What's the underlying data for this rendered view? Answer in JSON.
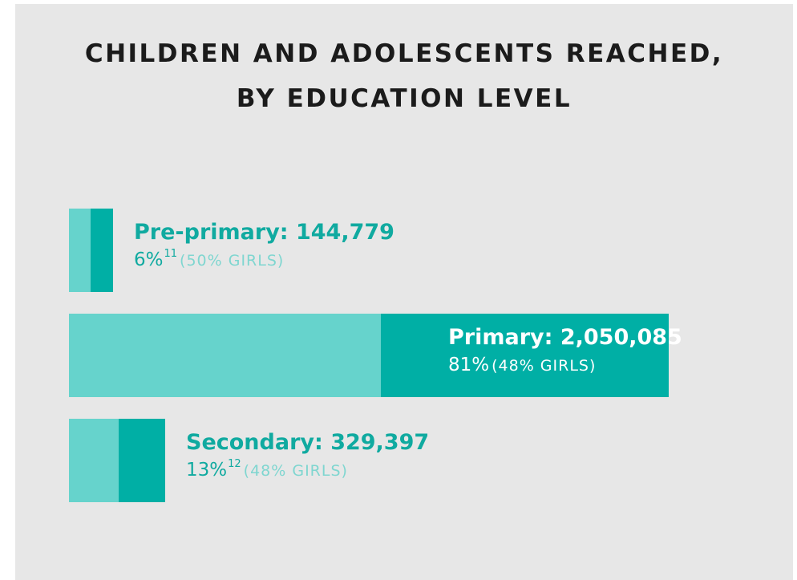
{
  "title": {
    "line1": "CHILDREN AND ADOLESCENTS REACHED,",
    "line2": "BY EDUCATION LEVEL"
  },
  "colors": {
    "background": "#e7e7e7",
    "girls_bar": "#00afa5",
    "boys_bar": "#66d3cc",
    "text_accent": "#10aaa0",
    "text_light": "#7fd6d0"
  },
  "chart_data": {
    "type": "bar",
    "orientation": "horizontal",
    "stacked": true,
    "categories": [
      "Pre-primary",
      "Primary",
      "Secondary"
    ],
    "totals": [
      144779,
      2050085,
      329397
    ],
    "share_percent": [
      6,
      81,
      13
    ],
    "girls_percent": [
      50,
      48,
      48
    ],
    "footnotes": [
      "11",
      "",
      "12"
    ],
    "series": [
      {
        "values": [
          72390,
          984041,
          158111
        ]
      },
      {
        "values": [
          72389,
          1066044,
          171286
        ]
      }
    ],
    "labels": [
      {
        "name": "Pre-primary: 144,779",
        "share": "6%",
        "note": "11",
        "girls": "(50% GIRLS)"
      },
      {
        "name": "Primary: 2,050,085",
        "share": "81%",
        "note": "",
        "girls": "(48% GIRLS)"
      },
      {
        "name": "Secondary: 329,397",
        "share": "13%",
        "note": "12",
        "girls": "(48% GIRLS)"
      }
    ],
    "grid": false,
    "legend": "none"
  }
}
